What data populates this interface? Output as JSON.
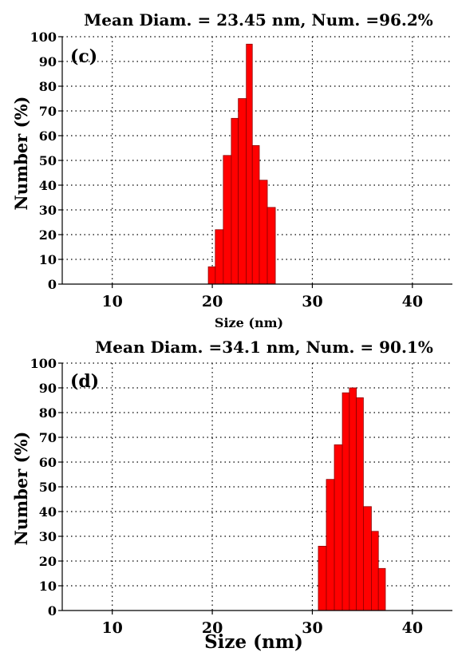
{
  "chart_data": [
    {
      "type": "bar",
      "panel_label": "(c)",
      "title": "Mean Diam. = 23.45 nm, Num. =96.2%",
      "xlabel": "Size (nm)",
      "ylabel": "Number (%)",
      "xlim": [
        5,
        44
      ],
      "ylim": [
        0,
        100
      ],
      "xticks": [
        10,
        20,
        30,
        40
      ],
      "yticks": [
        0,
        10,
        20,
        30,
        40,
        50,
        60,
        70,
        80,
        90,
        100
      ],
      "grid": true,
      "bar_color": "#ff0000",
      "bars": [
        {
          "x": [
            19.6,
            20.3
          ],
          "y": 7
        },
        {
          "x": [
            20.3,
            21.1
          ],
          "y": 22
        },
        {
          "x": [
            21.1,
            21.9
          ],
          "y": 52
        },
        {
          "x": [
            21.9,
            22.6
          ],
          "y": 67
        },
        {
          "x": [
            22.6,
            23.4
          ],
          "y": 75
        },
        {
          "x": [
            23.4,
            24.0
          ],
          "y": 97
        },
        {
          "x": [
            24.0,
            24.7
          ],
          "y": 56
        },
        {
          "x": [
            24.7,
            25.5
          ],
          "y": 42
        },
        {
          "x": [
            25.5,
            26.3
          ],
          "y": 31
        }
      ]
    },
    {
      "type": "bar",
      "panel_label": "(d)",
      "title": "Mean Diam. =34.1 nm, Num. = 90.1%",
      "xlabel": "Size (nm)",
      "ylabel": "Number (%)",
      "xlim": [
        5,
        44
      ],
      "ylim": [
        0,
        100
      ],
      "xticks": [
        10,
        20,
        30,
        40
      ],
      "yticks": [
        0,
        10,
        20,
        30,
        40,
        50,
        60,
        70,
        80,
        90,
        100
      ],
      "grid": true,
      "bar_color": "#ff0000",
      "bars": [
        {
          "x": [
            30.6,
            31.4
          ],
          "y": 26
        },
        {
          "x": [
            31.4,
            32.2
          ],
          "y": 53
        },
        {
          "x": [
            32.2,
            33.0
          ],
          "y": 67
        },
        {
          "x": [
            33.0,
            33.7
          ],
          "y": 88
        },
        {
          "x": [
            33.7,
            34.4
          ],
          "y": 90
        },
        {
          "x": [
            34.4,
            35.1
          ],
          "y": 86
        },
        {
          "x": [
            35.1,
            35.9
          ],
          "y": 42
        },
        {
          "x": [
            35.9,
            36.6
          ],
          "y": 32
        },
        {
          "x": [
            36.6,
            37.3
          ],
          "y": 17
        }
      ]
    }
  ]
}
